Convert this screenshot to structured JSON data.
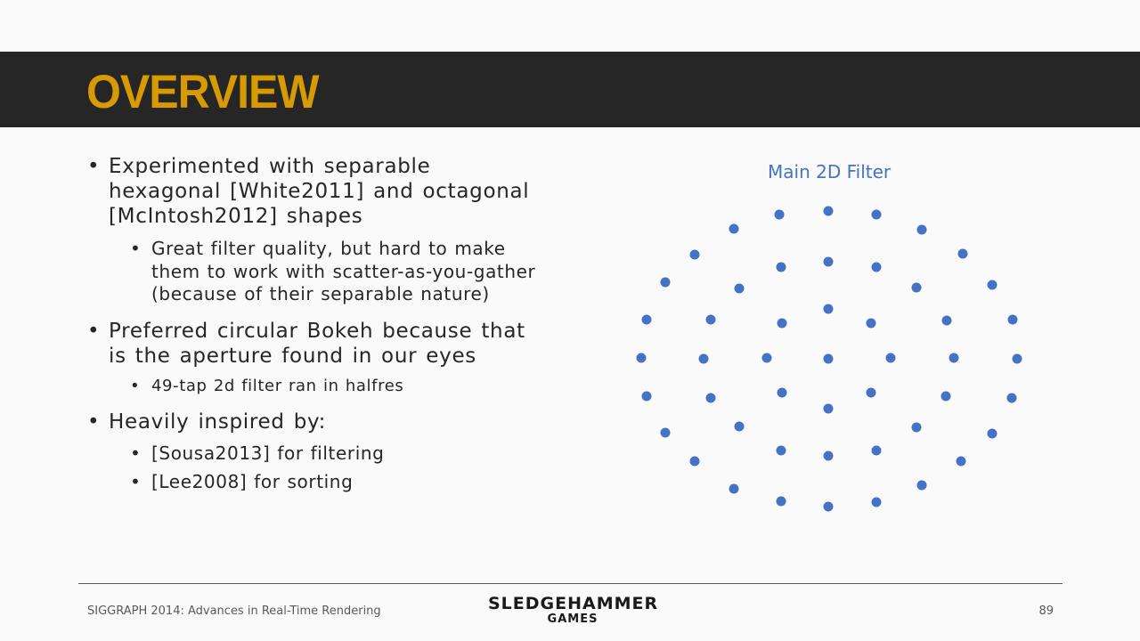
{
  "slide": {
    "title": "OVERVIEW",
    "bullets": [
      {
        "text": "Experimented with separable hexagonal [White2011] and octagonal [McIntosh2012] shapes",
        "sub": [
          "Great filter quality, but hard to make them to work with scatter-as-you-gather (because of their separable nature)"
        ]
      },
      {
        "text": "Preferred circular Bokeh because that is the aperture found in our eyes",
        "sub": [
          "49-tap 2d filter ran in halfres"
        ]
      },
      {
        "text": "Heavily inspired by:",
        "sub": [
          "[Sousa2013] for filtering",
          "[Lee2008] for sorting"
        ]
      }
    ]
  },
  "figure": {
    "title": "Main 2D Filter",
    "dot_color": "#4472c4",
    "taps": 49
  },
  "footer": {
    "conference": "SIGGRAPH 2014: Advances in Real-Time Rendering",
    "logo_line1": "SLEDGEHAMMER",
    "logo_line2": "GAMES",
    "page_number": "89"
  },
  "colors": {
    "title_bar": "#262626",
    "title_text": "#d79b00",
    "body_text": "#262626",
    "accent": "#4472c4"
  }
}
